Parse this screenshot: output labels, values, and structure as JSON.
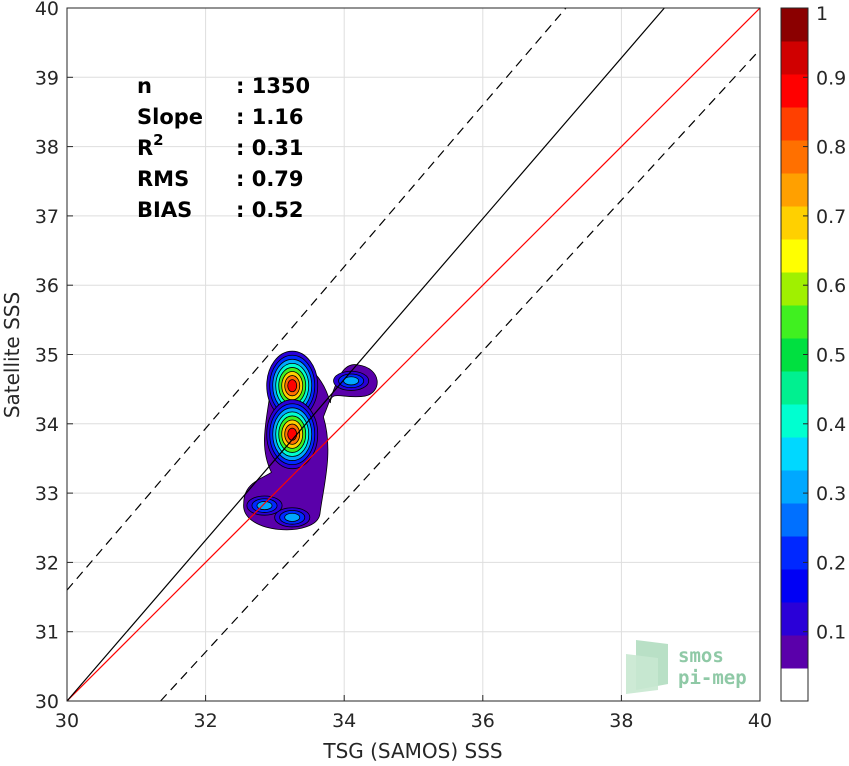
{
  "chart_data": {
    "type": "heatmap",
    "subtype": "contour-density-scatter",
    "xlabel": "TSG (SAMOS) SSS",
    "ylabel": "Satellite SSS",
    "xlim": [
      30,
      40
    ],
    "ylim": [
      30,
      40
    ],
    "xticks": [
      30,
      32,
      34,
      36,
      38,
      40
    ],
    "yticks": [
      30,
      31,
      32,
      33,
      34,
      35,
      36,
      37,
      38,
      39,
      40
    ],
    "grid": true,
    "stats": [
      {
        "label": "n",
        "sep": ": ",
        "value": "1350"
      },
      {
        "label": "Slope",
        "sep": ": ",
        "value": "1.16"
      },
      {
        "label": "R",
        "sup": "2",
        "sep": ": ",
        "value": "0.31"
      },
      {
        "label": "RMS",
        "sep": ": ",
        "value": "0.79"
      },
      {
        "label": "BIAS",
        "sep": ": ",
        "value": "0.52"
      }
    ],
    "lines": [
      {
        "role": "one-to-one",
        "color": "#ff0000",
        "dash": "solid",
        "x": [
          30,
          40
        ],
        "y": [
          30,
          40
        ]
      },
      {
        "role": "regression-fit",
        "color": "#000000",
        "dash": "solid",
        "x": [
          30,
          38.62
        ],
        "y": [
          30,
          40
        ]
      },
      {
        "role": "upper-bound",
        "color": "#000000",
        "dash": "dashed",
        "x": [
          30,
          37.2
        ],
        "y": [
          31.6,
          40
        ]
      },
      {
        "role": "lower-bound",
        "color": "#000000",
        "dash": "dashed",
        "x": [
          31.35,
          40
        ],
        "y": [
          30,
          39.4
        ]
      }
    ],
    "density_peaks": [
      {
        "x": 33.25,
        "y": 34.55,
        "value": 0.92
      },
      {
        "x": 33.25,
        "y": 33.85,
        "value": 0.95
      },
      {
        "x": 34.1,
        "y": 34.62,
        "value": 0.4
      },
      {
        "x": 32.85,
        "y": 32.82,
        "value": 0.32
      },
      {
        "x": 33.25,
        "y": 32.65,
        "value": 0.35
      }
    ],
    "colorbar": {
      "min": 0,
      "max": 1,
      "ticks": [
        "0.1",
        "0.2",
        "0.3",
        "0.4",
        "0.5",
        "0.6",
        "0.7",
        "0.8",
        "0.9",
        "1"
      ],
      "colors": [
        "#ffffff",
        "#5a00aa",
        "#2a00d8",
        "#0000f5",
        "#0028ff",
        "#0070ff",
        "#00a8ff",
        "#00d8ff",
        "#00ffd0",
        "#00f090",
        "#00e040",
        "#40f020",
        "#a0f000",
        "#ffff00",
        "#ffd000",
        "#ffa000",
        "#ff7000",
        "#ff4000",
        "#ff0000",
        "#d00000",
        "#8b0000"
      ]
    }
  },
  "logo": {
    "line1": "smos",
    "line2": "pi-mep"
  }
}
